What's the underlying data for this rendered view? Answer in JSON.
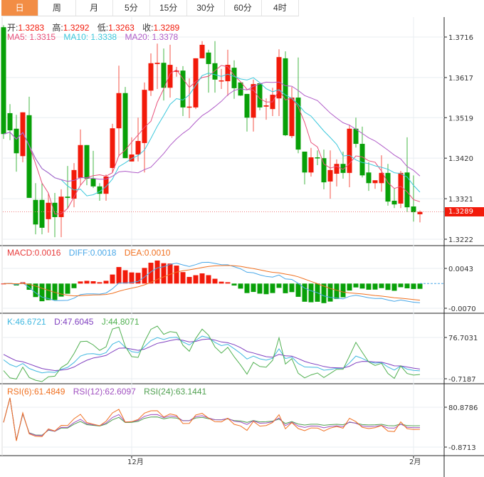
{
  "tabs": [
    {
      "label": "日",
      "active": true
    },
    {
      "label": "周"
    },
    {
      "label": "月"
    },
    {
      "label": "5分"
    },
    {
      "label": "15分"
    },
    {
      "label": "30分"
    },
    {
      "label": "60分"
    },
    {
      "label": "4时"
    }
  ],
  "ohlc": {
    "open_label": "开:",
    "open": "1.3283",
    "high_label": "高:",
    "high": "1.3292",
    "low_label": "低:",
    "low": "1.3263",
    "close_label": "收:",
    "close": "1.3289"
  },
  "ma": {
    "ma5": "MA5: 1.3315",
    "ma10": "MA10: 1.3338",
    "ma20": "MA20: 1.3378"
  },
  "macd": {
    "macd": "MACD:0.0016",
    "diff": "DIFF:0.0018",
    "dea": "DEA:0.0010"
  },
  "kdj": {
    "k": "K:46.6721",
    "d": "D:47.6045",
    "j": "J:44.8071"
  },
  "rsi": {
    "rsi6": "RSI(6):61.4849",
    "rsi12": "RSI(12):62.6097",
    "rsi24": "RSI(24):63.1441"
  },
  "last_price": "1.3289",
  "colors": {
    "up": "#f21a0a",
    "down": "#08a008",
    "ma5": "#e8507a",
    "ma10": "#3cc8dc",
    "ma20": "#b05cc8",
    "macd": "#e83c3c",
    "diff": "#4aa8e8",
    "dea": "#f07020",
    "k": "#40b8e0",
    "d": "#8040c0",
    "j": "#50b050",
    "rsi6": "#f07020",
    "rsi12": "#a050c0",
    "rsi24": "#50a050",
    "accent": "#f28d45"
  },
  "chart_data": {
    "type": "candlestick",
    "price_ticks": [
      "1.3716",
      "1.3617",
      "1.3519",
      "1.3420",
      "1.3321",
      "1.3222"
    ],
    "macd_ticks": [
      "0.0043",
      "-0.0070"
    ],
    "kdj_ticks": [
      "76.7031",
      "-0.7187"
    ],
    "rsi_ticks": [
      "80.8786",
      "-0.8713"
    ],
    "x_labels": [
      {
        "index": 20,
        "label": "12月"
      },
      {
        "index": 64,
        "label": "2月"
      }
    ],
    "candles": [
      [
        1.374,
        1.3745,
        1.3467,
        1.3479
      ],
      [
        1.353,
        1.3552,
        1.3464,
        1.3488
      ],
      [
        1.3492,
        1.3526,
        1.3387,
        1.3432
      ],
      [
        1.3425,
        1.3532,
        1.341,
        1.3532
      ],
      [
        1.3525,
        1.357,
        1.3323,
        1.3323
      ],
      [
        1.3318,
        1.3359,
        1.3234,
        1.3258
      ],
      [
        1.3318,
        1.3359,
        1.3234,
        1.325
      ],
      [
        1.3271,
        1.3335,
        1.3238,
        1.3311
      ],
      [
        1.3311,
        1.3335,
        1.3227,
        1.3276
      ],
      [
        1.3276,
        1.3344,
        1.3227,
        1.3326
      ],
      [
        1.3326,
        1.3401,
        1.3297,
        1.3323
      ],
      [
        1.3321,
        1.3408,
        1.33,
        1.3391
      ],
      [
        1.3372,
        1.349,
        1.3354,
        1.3452
      ],
      [
        1.3452,
        1.3452,
        1.3354,
        1.337
      ],
      [
        1.337,
        1.3438,
        1.3347,
        1.3351
      ],
      [
        1.3351,
        1.3359,
        1.3316,
        1.3333
      ],
      [
        1.3333,
        1.338,
        1.3316,
        1.3375
      ],
      [
        1.3396,
        1.3504,
        1.3385,
        1.3493
      ],
      [
        1.3493,
        1.3646,
        1.3424,
        1.3579
      ],
      [
        1.3579,
        1.3594,
        1.342,
        1.342
      ],
      [
        1.3412,
        1.3471,
        1.3412,
        1.3429
      ],
      [
        1.3429,
        1.3519,
        1.3412,
        1.3462
      ],
      [
        1.3457,
        1.3605,
        1.3385,
        1.3587
      ],
      [
        1.3585,
        1.3676,
        1.3572,
        1.3652
      ],
      [
        1.365,
        1.37,
        1.3589,
        1.3653
      ],
      [
        1.3653,
        1.3688,
        1.3561,
        1.3592
      ],
      [
        1.3592,
        1.3697,
        1.3568,
        1.3648
      ],
      [
        1.3631,
        1.3643,
        1.3619,
        1.3634
      ],
      [
        1.3634,
        1.3645,
        1.3523,
        1.3544
      ],
      [
        1.3544,
        1.3615,
        1.3518,
        1.3546
      ],
      [
        1.3544,
        1.3664,
        1.354,
        1.3664
      ],
      [
        1.3664,
        1.3706,
        1.3664,
        1.3697
      ],
      [
        1.3678,
        1.3685,
        1.358,
        1.365
      ],
      [
        1.3652,
        1.3706,
        1.358,
        1.3612
      ],
      [
        1.3608,
        1.3638,
        1.3589,
        1.361
      ],
      [
        1.3608,
        1.3685,
        1.3572,
        1.3648
      ],
      [
        1.3641,
        1.3659,
        1.3565,
        1.3591
      ],
      [
        1.3605,
        1.3605,
        1.3572,
        1.3573
      ],
      [
        1.3577,
        1.3577,
        1.3485,
        1.3519
      ],
      [
        1.3519,
        1.3612,
        1.3485,
        1.3601
      ],
      [
        1.3603,
        1.3603,
        1.3537,
        1.3544
      ],
      [
        1.3546,
        1.3566,
        1.3514,
        1.3549
      ],
      [
        1.354,
        1.3592,
        1.3523,
        1.3575
      ],
      [
        1.3566,
        1.3686,
        1.3523,
        1.3667
      ],
      [
        1.3664,
        1.3681,
        1.3474,
        1.3476
      ],
      [
        1.3474,
        1.3594,
        1.3469,
        1.3568
      ],
      [
        1.3568,
        1.3666,
        1.3432,
        1.3441
      ],
      [
        1.3436,
        1.3436,
        1.3356,
        1.3385
      ],
      [
        1.3385,
        1.3445,
        1.3375,
        1.3422
      ],
      [
        1.3422,
        1.3439,
        1.3403,
        1.342
      ],
      [
        1.342,
        1.3441,
        1.3344,
        1.3361
      ],
      [
        1.3363,
        1.3439,
        1.3321,
        1.3391
      ],
      [
        1.3382,
        1.3417,
        1.3351,
        1.3406
      ],
      [
        1.3406,
        1.3436,
        1.337,
        1.3384
      ],
      [
        1.3384,
        1.3502,
        1.3349,
        1.3492
      ],
      [
        1.3492,
        1.3519,
        1.3446,
        1.3455
      ],
      [
        1.3455,
        1.3497,
        1.3373,
        1.3378
      ],
      [
        1.3385,
        1.341,
        1.334,
        1.3359
      ],
      [
        1.3359,
        1.3366,
        1.3345,
        1.3366
      ],
      [
        1.3359,
        1.3427,
        1.3338,
        1.3384
      ],
      [
        1.3384,
        1.3406,
        1.3304,
        1.3314
      ],
      [
        1.3316,
        1.3347,
        1.3298,
        1.3307
      ],
      [
        1.3309,
        1.3389,
        1.3298,
        1.3384
      ],
      [
        1.3385,
        1.3471,
        1.3288,
        1.33
      ],
      [
        1.3302,
        1.3378,
        1.3265,
        1.3288
      ],
      [
        1.3283,
        1.3292,
        1.3263,
        1.3289
      ]
    ]
  }
}
